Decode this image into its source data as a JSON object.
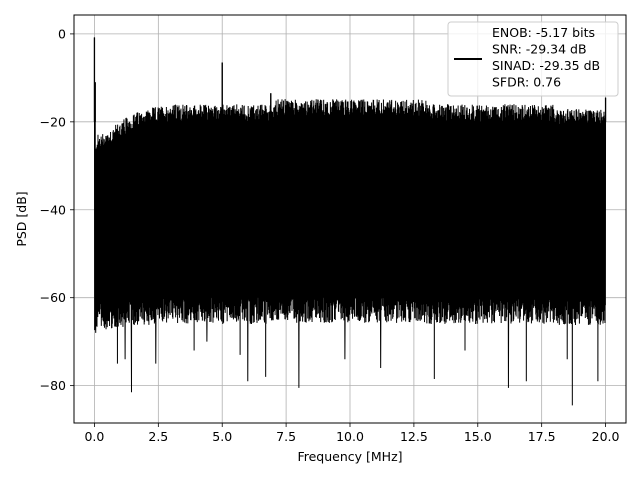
{
  "chart_data": {
    "type": "line",
    "title": "",
    "xlabel": "Frequency [MHz]",
    "ylabel": "PSD [dB]",
    "xlim": [
      -0.8,
      20.8
    ],
    "ylim": [
      -88.5,
      4.3
    ],
    "xticks": [
      0.0,
      2.5,
      5.0,
      7.5,
      10.0,
      12.5,
      15.0,
      17.5,
      20.0
    ],
    "xtick_labels": [
      "0.0",
      "2.5",
      "5.0",
      "7.5",
      "10.0",
      "12.5",
      "15.0",
      "17.5",
      "20.0"
    ],
    "yticks": [
      0,
      -20,
      -40,
      -60,
      -80
    ],
    "ytick_labels": [
      "0",
      "−20",
      "−40",
      "−60",
      "−80"
    ],
    "grid": true,
    "legend_position": "top-right",
    "series": [
      {
        "name": "ENOB: -5.17 bits\nSNR: -29.34 dB\nSINAD: -29.35 dB\nSFDR: 0.76",
        "color": "#000000",
        "x_range": [
          0.0,
          20.0
        ],
        "noise_floor_top_db": -20,
        "noise_floor_bottom_db": -60,
        "spurs": [
          {
            "x": 0.0,
            "y": -0.8
          },
          {
            "x": 0.03,
            "y": -11
          },
          {
            "x": 5.0,
            "y": -6.5
          },
          {
            "x": 6.9,
            "y": -13.5
          },
          {
            "x": 20.0,
            "y": -14.5
          }
        ],
        "deep_nulls": [
          {
            "x": 0.05,
            "y": -68
          },
          {
            "x": 0.9,
            "y": -75
          },
          {
            "x": 1.45,
            "y": -81.5
          },
          {
            "x": 1.2,
            "y": -74
          },
          {
            "x": 2.4,
            "y": -75
          },
          {
            "x": 3.9,
            "y": -72
          },
          {
            "x": 4.4,
            "y": -70
          },
          {
            "x": 5.7,
            "y": -73
          },
          {
            "x": 6.0,
            "y": -79
          },
          {
            "x": 6.7,
            "y": -78
          },
          {
            "x": 8.0,
            "y": -80.5
          },
          {
            "x": 9.8,
            "y": -74
          },
          {
            "x": 11.2,
            "y": -76
          },
          {
            "x": 13.3,
            "y": -78.5
          },
          {
            "x": 14.5,
            "y": -72
          },
          {
            "x": 16.2,
            "y": -80.5
          },
          {
            "x": 16.9,
            "y": -79
          },
          {
            "x": 18.7,
            "y": -84.5
          },
          {
            "x": 18.5,
            "y": -74
          },
          {
            "x": 19.7,
            "y": -79
          }
        ]
      }
    ],
    "legend_lines": [
      "ENOB: -5.17 bits",
      "SNR: -29.34 dB",
      "SINAD: -29.35 dB",
      "SFDR: 0.76"
    ]
  }
}
